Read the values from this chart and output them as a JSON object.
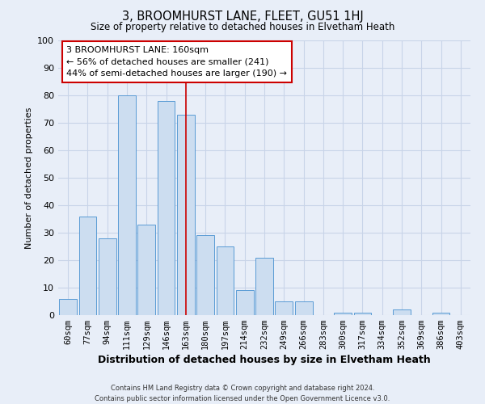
{
  "title": "3, BROOMHURST LANE, FLEET, GU51 1HJ",
  "subtitle": "Size of property relative to detached houses in Elvetham Heath",
  "xlabel": "Distribution of detached houses by size in Elvetham Heath",
  "ylabel": "Number of detached properties",
  "footer_line1": "Contains HM Land Registry data © Crown copyright and database right 2024.",
  "footer_line2": "Contains public sector information licensed under the Open Government Licence v3.0.",
  "bin_labels": [
    "60sqm",
    "77sqm",
    "94sqm",
    "111sqm",
    "129sqm",
    "146sqm",
    "163sqm",
    "180sqm",
    "197sqm",
    "214sqm",
    "232sqm",
    "249sqm",
    "266sqm",
    "283sqm",
    "300sqm",
    "317sqm",
    "334sqm",
    "352sqm",
    "369sqm",
    "386sqm",
    "403sqm"
  ],
  "bar_heights": [
    6,
    36,
    28,
    80,
    33,
    78,
    73,
    29,
    25,
    9,
    21,
    5,
    5,
    0,
    1,
    1,
    0,
    2,
    0,
    1,
    0
  ],
  "bar_color": "#ccddf0",
  "bar_edge_color": "#5a9bd5",
  "vline_x_index": 6,
  "vline_color": "#cc0000",
  "annotation_line1": "3 BROOMHURST LANE: 160sqm",
  "annotation_line2": "← 56% of detached houses are smaller (241)",
  "annotation_line3": "44% of semi-detached houses are larger (190) →",
  "annotation_box_color": "white",
  "annotation_box_edge": "#cc0000",
  "ylim": [
    0,
    100
  ],
  "grid_color": "#c8d4e8",
  "background_color": "#e8eef8",
  "yticks": [
    0,
    10,
    20,
    30,
    40,
    50,
    60,
    70,
    80,
    90,
    100
  ]
}
